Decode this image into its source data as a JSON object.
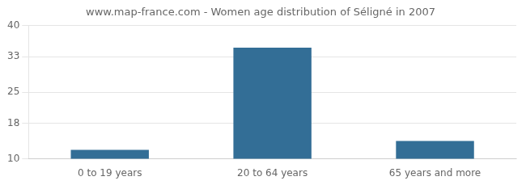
{
  "chart_data": {
    "type": "bar",
    "title": "www.map-france.com - Women age distribution of Séligné in 2007",
    "categories": [
      "0 to 19 years",
      "20 to 64 years",
      "65 years and more"
    ],
    "values": [
      12,
      35,
      14
    ],
    "color": "#336e96",
    "ylim": [
      10,
      40
    ],
    "yticks": [
      10,
      18,
      25,
      33,
      40
    ],
    "grid": true
  }
}
